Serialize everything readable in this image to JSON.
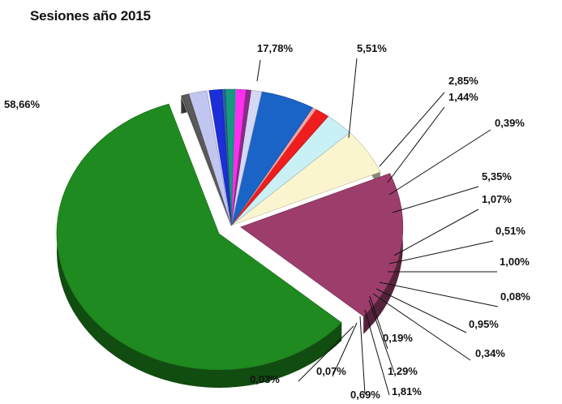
{
  "chart_data": {
    "type": "pie",
    "title": "Sesiones año 2015",
    "values": [
      58.66,
      17.78,
      5.51,
      2.85,
      1.44,
      0.39,
      5.35,
      1.07,
      0.51,
      1.0,
      0.08,
      0.95,
      0.34,
      1.29,
      0.19,
      1.81,
      0.69,
      0.07,
      0.03
    ],
    "labels": [
      "58,66%",
      "17,78%",
      "5,51%",
      "2,85%",
      "1,44%",
      "0,39%",
      "5,35%",
      "1,07%",
      "0,51%",
      "1,00%",
      "0,08%",
      "0,95%",
      "0,34%",
      "1,29%",
      "0,19%",
      "1,81%",
      "0,69%",
      "0,07%",
      "0,03%"
    ],
    "colors": [
      "#1f8a1f",
      "#9c3d6b",
      "#fbf5cf",
      "#c9f1f5",
      "#ef1d1d",
      "#f4a3a3",
      "#1a64c8",
      "#d3d8f4",
      "#8a2d8a",
      "#ff2ef0",
      "#2de6e6",
      "#17997f",
      "#2b5f9e",
      "#1b2ed8",
      "#ffffff",
      "#c0c6f0",
      "#5a5a5a",
      "#444444",
      "#c8c8c8"
    ],
    "style": "3d-exploded"
  }
}
